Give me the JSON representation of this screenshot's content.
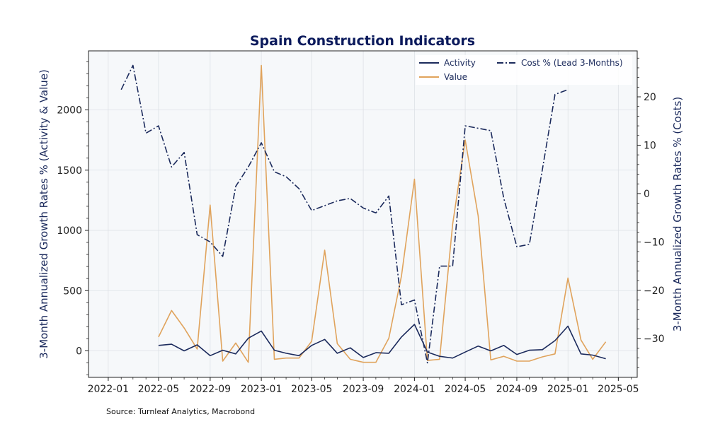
{
  "chart_data": {
    "type": "line",
    "title": "Spain Construction Indicators",
    "ylabel_left": "3-Month Annualized Growth Rates % (Activity & Value)",
    "ylabel_right": "3-Month Annualized Growth Rates % (Costs)",
    "xlabel": "",
    "x_ticks": [
      "2022-01",
      "2022-05",
      "2022-09",
      "2023-01",
      "2023-05",
      "2023-09",
      "2024-01",
      "2024-05",
      "2024-09",
      "2025-01",
      "2025-05"
    ],
    "y_left_ticks": [
      0,
      500,
      1000,
      1500,
      2000
    ],
    "y_right_ticks": [
      -30,
      -20,
      -10,
      0,
      10,
      20
    ],
    "ylim_left": [
      -220,
      2490
    ],
    "ylim_right": [
      -38,
      29.5
    ],
    "xlim": [
      "2021-11-15",
      "2025-06-15"
    ],
    "grid": true,
    "legend_position": "top-right",
    "colors": {
      "activity": "#1b2a5c",
      "value": "#e0a35c",
      "cost": "#1b2a5c",
      "title": "#0b1a5c",
      "plot_bg": "#f6f8fa",
      "grid": "#dde1e6"
    },
    "series": [
      {
        "name": "Activity",
        "axis": "left",
        "style": "solid",
        "color": "#1b2a5c",
        "points": [
          [
            "2022-05-01",
            45
          ],
          [
            "2022-06-01",
            55
          ],
          [
            "2022-07-01",
            0
          ],
          [
            "2022-08-01",
            50
          ],
          [
            "2022-09-01",
            -40
          ],
          [
            "2022-10-01",
            5
          ],
          [
            "2022-11-01",
            -25
          ],
          [
            "2022-12-01",
            105
          ],
          [
            "2023-01-01",
            165
          ],
          [
            "2023-02-01",
            5
          ],
          [
            "2023-03-01",
            -20
          ],
          [
            "2023-04-01",
            -40
          ],
          [
            "2023-05-01",
            45
          ],
          [
            "2023-06-01",
            95
          ],
          [
            "2023-07-01",
            -20
          ],
          [
            "2023-08-01",
            25
          ],
          [
            "2023-09-01",
            -55
          ],
          [
            "2023-10-01",
            -15
          ],
          [
            "2023-11-01",
            -20
          ],
          [
            "2023-12-01",
            115
          ],
          [
            "2024-01-01",
            220
          ],
          [
            "2024-02-01",
            -10
          ],
          [
            "2024-03-01",
            -45
          ],
          [
            "2024-04-01",
            -60
          ],
          [
            "2024-05-01",
            -10
          ],
          [
            "2024-06-01",
            40
          ],
          [
            "2024-07-01",
            0
          ],
          [
            "2024-08-01",
            45
          ],
          [
            "2024-09-01",
            -30
          ],
          [
            "2024-10-01",
            5
          ],
          [
            "2024-11-01",
            10
          ],
          [
            "2024-12-01",
            85
          ],
          [
            "2025-01-01",
            205
          ],
          [
            "2025-02-01",
            -25
          ],
          [
            "2025-03-01",
            -35
          ],
          [
            "2025-04-01",
            -65
          ]
        ]
      },
      {
        "name": "Value",
        "axis": "left",
        "style": "solid",
        "color": "#e0a35c",
        "points": [
          [
            "2022-05-01",
            115
          ],
          [
            "2022-06-01",
            335
          ],
          [
            "2022-07-01",
            190
          ],
          [
            "2022-08-01",
            15
          ],
          [
            "2022-09-01",
            1210
          ],
          [
            "2022-10-01",
            -85
          ],
          [
            "2022-11-01",
            65
          ],
          [
            "2022-12-01",
            -95
          ],
          [
            "2023-01-01",
            2370
          ],
          [
            "2023-02-01",
            -70
          ],
          [
            "2023-03-01",
            -60
          ],
          [
            "2023-04-01",
            -60
          ],
          [
            "2023-05-01",
            80
          ],
          [
            "2023-06-01",
            835
          ],
          [
            "2023-07-01",
            60
          ],
          [
            "2023-08-01",
            -70
          ],
          [
            "2023-09-01",
            -95
          ],
          [
            "2023-10-01",
            -95
          ],
          [
            "2023-11-01",
            105
          ],
          [
            "2023-12-01",
            620
          ],
          [
            "2024-01-01",
            1425
          ],
          [
            "2024-02-01",
            -80
          ],
          [
            "2024-03-01",
            -70
          ],
          [
            "2024-04-01",
            1050
          ],
          [
            "2024-05-01",
            1750
          ],
          [
            "2024-06-01",
            1120
          ],
          [
            "2024-07-01",
            -75
          ],
          [
            "2024-08-01",
            -45
          ],
          [
            "2024-09-01",
            -85
          ],
          [
            "2024-10-01",
            -85
          ],
          [
            "2024-11-01",
            -50
          ],
          [
            "2024-12-01",
            -25
          ],
          [
            "2025-01-01",
            605
          ],
          [
            "2025-02-01",
            90
          ],
          [
            "2025-03-01",
            -70
          ],
          [
            "2025-04-01",
            75
          ]
        ]
      },
      {
        "name": "Cost % (Lead 3-Months)",
        "axis": "right",
        "style": "dashdot",
        "color": "#1b2a5c",
        "points": [
          [
            "2022-02-01",
            21.5
          ],
          [
            "2022-03-01",
            26.5
          ],
          [
            "2022-04-01",
            12.5
          ],
          [
            "2022-05-01",
            14
          ],
          [
            "2022-06-01",
            5.5
          ],
          [
            "2022-07-01",
            8.5
          ],
          [
            "2022-08-01",
            -8.5
          ],
          [
            "2022-09-01",
            -10
          ],
          [
            "2022-10-01",
            -13
          ],
          [
            "2022-11-01",
            1.5
          ],
          [
            "2022-12-01",
            5.5
          ],
          [
            "2023-01-01",
            10.5
          ],
          [
            "2023-02-01",
            4.5
          ],
          [
            "2023-03-01",
            3.5
          ],
          [
            "2023-04-01",
            1
          ],
          [
            "2023-05-01",
            -3.5
          ],
          [
            "2023-06-01",
            -2.5
          ],
          [
            "2023-07-01",
            -1.5
          ],
          [
            "2023-08-01",
            -1
          ],
          [
            "2023-09-01",
            -3
          ],
          [
            "2023-10-01",
            -4
          ],
          [
            "2023-11-01",
            -0.5
          ],
          [
            "2023-12-01",
            -23
          ],
          [
            "2024-01-01",
            -22
          ],
          [
            "2024-02-01",
            -35
          ],
          [
            "2024-03-01",
            -15
          ],
          [
            "2024-04-01",
            -15
          ],
          [
            "2024-05-01",
            14
          ],
          [
            "2024-06-01",
            13.5
          ],
          [
            "2024-07-01",
            13
          ],
          [
            "2024-08-01",
            -1
          ],
          [
            "2024-09-01",
            -11
          ],
          [
            "2024-10-01",
            -10.5
          ],
          [
            "2024-11-01",
            5
          ],
          [
            "2024-12-01",
            20.5
          ],
          [
            "2025-01-01",
            21.5
          ]
        ]
      }
    ]
  },
  "footer": {
    "source": "Source: Turnleaf Analytics, Macrobond"
  }
}
